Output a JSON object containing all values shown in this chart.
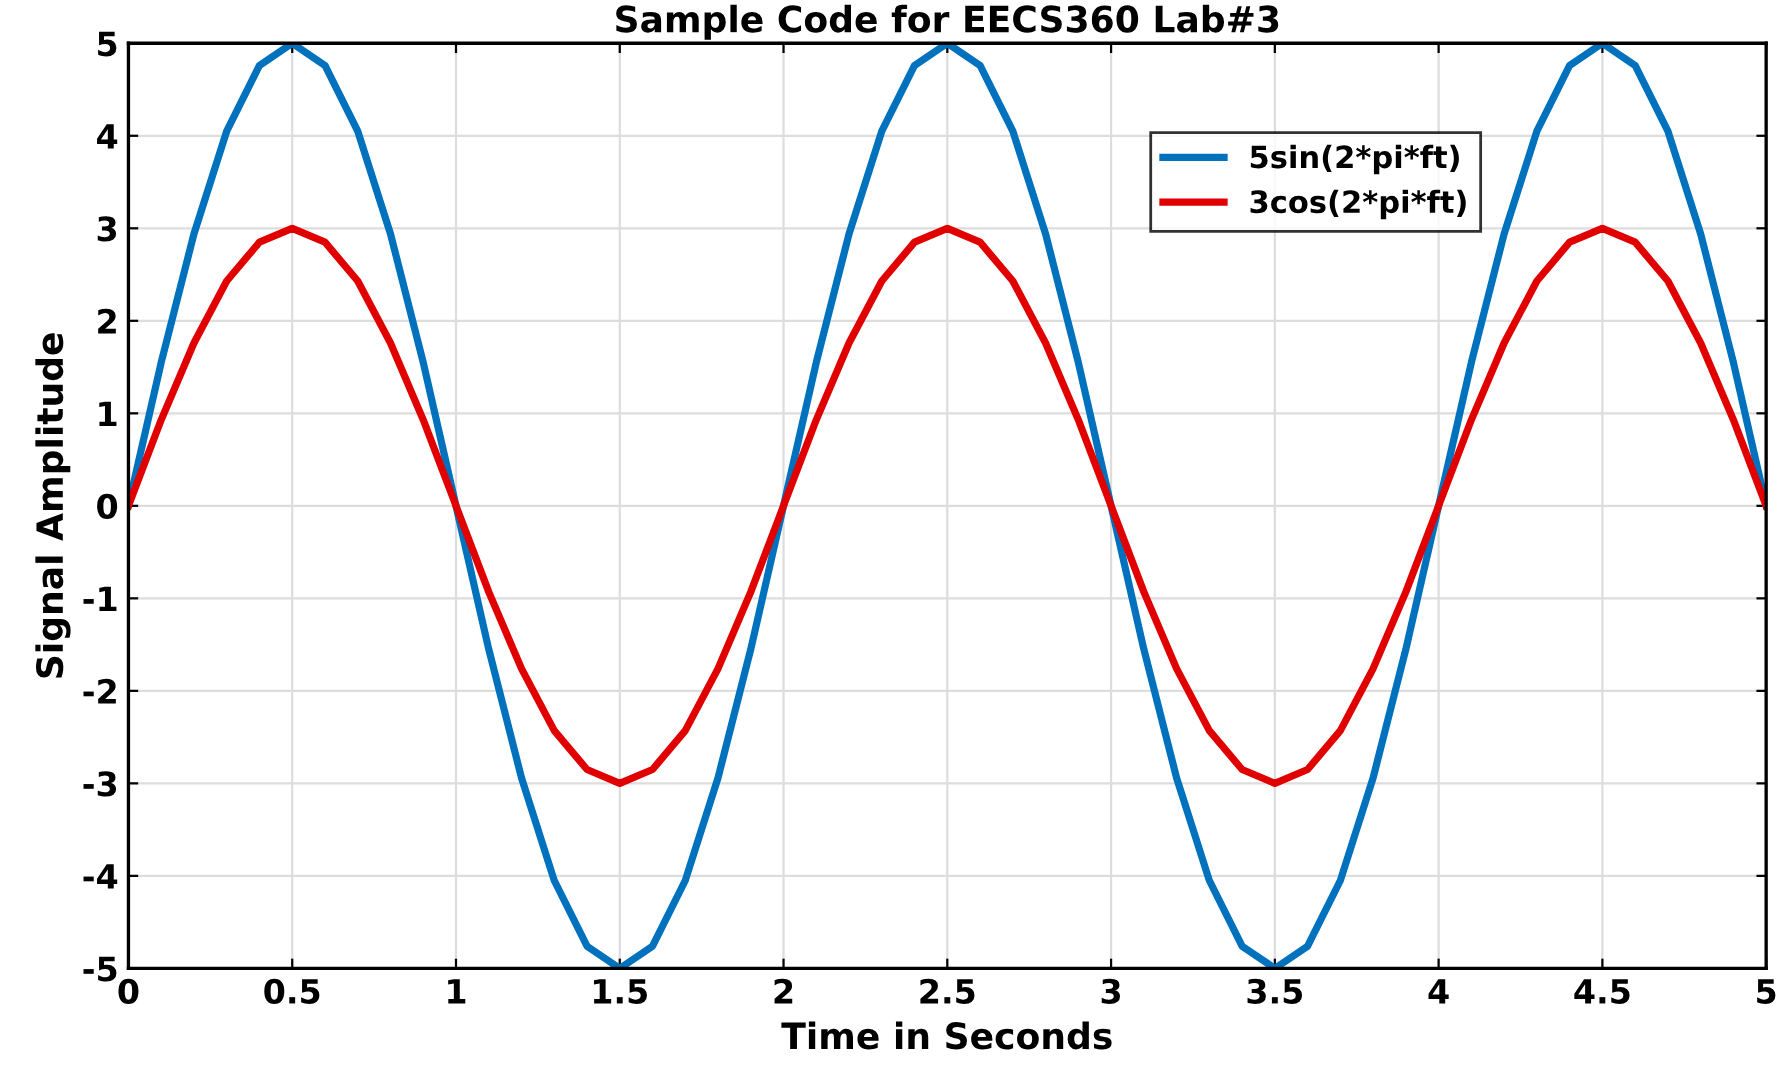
{
  "chart_data": {
    "type": "line",
    "title": "Sample Code for EECS360 Lab#3",
    "xlabel": "Time in Seconds",
    "ylabel": "Signal Amplitude",
    "x": [
      0,
      0.1,
      0.2,
      0.3,
      0.4,
      0.5,
      0.6,
      0.7,
      0.8,
      0.9,
      1,
      1.1,
      1.2,
      1.3,
      1.4,
      1.5,
      1.6,
      1.7,
      1.8,
      1.9,
      2,
      2.1,
      2.2,
      2.3,
      2.4,
      2.5,
      2.6,
      2.7,
      2.8,
      2.9,
      3,
      3.1,
      3.2,
      3.3,
      3.4,
      3.5,
      3.6,
      3.7,
      3.8,
      3.9,
      4,
      4.1,
      4.2,
      4.3,
      4.4,
      4.5,
      4.6,
      4.7,
      4.8,
      4.9,
      5
    ],
    "series": [
      {
        "name": "5sin(2*pi*ft)",
        "color": "#0072bd",
        "values": [
          0,
          1.55,
          2.94,
          4.05,
          4.76,
          5,
          4.76,
          4.05,
          2.94,
          1.55,
          0,
          -1.55,
          -2.94,
          -4.05,
          -4.76,
          -5,
          -4.76,
          -4.05,
          -2.94,
          -1.55,
          0,
          1.55,
          2.94,
          4.05,
          4.76,
          5,
          4.76,
          4.05,
          2.94,
          1.55,
          0,
          -1.55,
          -2.94,
          -4.05,
          -4.76,
          -5,
          -4.76,
          -4.05,
          -2.94,
          -1.55,
          0,
          1.55,
          2.94,
          4.05,
          4.76,
          5,
          4.76,
          4.05,
          2.94,
          1.55,
          0
        ]
      },
      {
        "name": "3cos(2*pi*ft)",
        "color": "#e00000",
        "values": [
          0,
          0.93,
          1.76,
          2.43,
          2.85,
          3,
          2.85,
          2.43,
          1.76,
          0.93,
          0,
          -0.93,
          -1.76,
          -2.43,
          -2.85,
          -3,
          -2.85,
          -2.43,
          -1.76,
          -0.93,
          0,
          0.93,
          1.76,
          2.43,
          2.85,
          3,
          2.85,
          2.43,
          1.76,
          0.93,
          0,
          -0.93,
          -1.76,
          -2.43,
          -2.85,
          -3,
          -2.85,
          -2.43,
          -1.76,
          -0.93,
          0,
          0.93,
          1.76,
          2.43,
          2.85,
          3,
          2.85,
          2.43,
          1.76,
          0.93,
          0
        ]
      }
    ],
    "xlim": [
      0,
      5
    ],
    "ylim": [
      -5,
      5
    ],
    "xticks": [
      0,
      0.5,
      1,
      1.5,
      2,
      2.5,
      3,
      3.5,
      4,
      4.5,
      5
    ],
    "yticks": [
      -5,
      -4,
      -3,
      -2,
      -1,
      0,
      1,
      2,
      3,
      4,
      5
    ],
    "grid": true,
    "legend": "top right",
    "line_style": "solid"
  }
}
